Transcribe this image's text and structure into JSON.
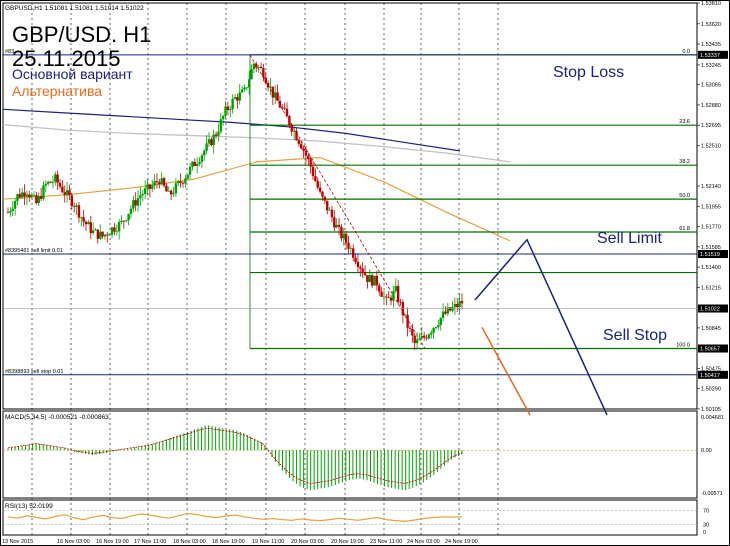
{
  "header": {
    "symbol_line": "GBPUSD,H1  1.51081 1.51081 1.51014 1.51022",
    "title": "GBP/USD. H1",
    "date": "25.11.2015",
    "variant_main": "Основной вариант",
    "variant_alt": "Альтернатива"
  },
  "annotations": {
    "stop_loss": "Stop Loss",
    "sell_limit": "Sell Limit",
    "sell_stop": "Sell Stop",
    "order_1": "#83…",
    "order_2": "#8395461 sell limit 0.01",
    "order_3": "#8398893 sell stop 0.01"
  },
  "colors": {
    "frame": "#000000",
    "fib_line": "#007000",
    "order_line": "#1a237e",
    "ma_dark": "#1a237e",
    "ma_orange": "#e8a040",
    "ma_gray": "#c0c0c0",
    "bull": "#00a000",
    "bear": "#c00000",
    "stoploss_arrow": "#1a237e",
    "alt_arrow": "#e86a1e",
    "macd_hist": "#00a000",
    "macd_signal": "#c00000",
    "rsi_line": "#e8a040",
    "price_box": "#000000"
  },
  "chart_data": [
    {
      "type": "candlestick",
      "title": "GBPUSD,H1",
      "y_axis_ticks": [
        "1.53810",
        "1.53620",
        "1.53435",
        "1.53245",
        "1.53065",
        "1.52880",
        "1.52695",
        "1.52510",
        "1.52140",
        "1.51955",
        "1.51770",
        "1.51585",
        "1.51400",
        "1.51215",
        "1.50845",
        "1.50475",
        "1.50290",
        "1.50105"
      ],
      "price_tags": [
        "1.53337",
        "1.51519",
        "1.51022",
        "1.50657",
        "1.50417"
      ],
      "x_axis_labels": [
        "13 Nov 2015",
        "16 Nov 03:00",
        "16 Nov 19:00",
        "17 Nov 11:00",
        "18 Nov 03:00",
        "18 Nov 19:00",
        "19 Nov 11:00",
        "20 Nov 03:00",
        "20 Nov 19:00",
        "23 Nov 11:00",
        "24 Nov 03:00",
        "24 Nov 19:00"
      ],
      "fibonacci_levels": [
        {
          "label": "0.0",
          "price": 1.53337
        },
        {
          "label": "23.6",
          "price": 1.52695
        },
        {
          "label": "38.2",
          "price": 1.5233
        },
        {
          "label": "50.0",
          "price": 1.5202
        },
        {
          "label": "61.8",
          "price": 1.5172
        },
        {
          "label": "",
          "price": 1.5135
        },
        {
          "label": "100.0",
          "price": 1.50657
        }
      ],
      "orders": [
        {
          "label": "#83…",
          "price": 1.53337
        },
        {
          "label": "#8395461 sell limit 0.01",
          "price": 1.51519
        },
        {
          "label": "#8398893 sell stop 0.01",
          "price": 1.50417
        }
      ],
      "last_price": 1.51022,
      "close_path": [
        1.519,
        1.5205,
        1.521,
        1.5198,
        1.5215,
        1.522,
        1.5208,
        1.5198,
        1.5182,
        1.5172,
        1.5168,
        1.5175,
        1.518,
        1.5194,
        1.5206,
        1.5212,
        1.522,
        1.5205,
        1.5215,
        1.5226,
        1.5238,
        1.5249,
        1.5262,
        1.5282,
        1.5294,
        1.53,
        1.5326,
        1.5318,
        1.5298,
        1.5284,
        1.5268,
        1.5252,
        1.5232,
        1.5206,
        1.519,
        1.5172,
        1.516,
        1.5145,
        1.513,
        1.5126,
        1.5108,
        1.5118,
        1.5092,
        1.507,
        1.5076,
        1.5086,
        1.5096,
        1.5102,
        1.5108
      ],
      "moving_averages": [
        {
          "color": "dark",
          "values": [
            1.5284,
            1.5281,
            1.5278,
            1.5275,
            1.5272,
            1.5268,
            1.5262,
            1.5254,
            1.5246
          ]
        },
        {
          "color": "gray",
          "values": [
            1.527,
            1.5265,
            1.5262,
            1.526,
            1.5258,
            1.5255,
            1.525,
            1.5244,
            1.5236
          ]
        },
        {
          "color": "orange",
          "values": [
            1.5202,
            1.5206,
            1.5212,
            1.522,
            1.5236,
            1.524,
            1.5218,
            1.519,
            1.5164
          ]
        }
      ],
      "forecast_main": [
        1.511,
        1.5165,
        1.5005
      ],
      "forecast_alt": [
        1.5085,
        1.5005
      ]
    },
    {
      "type": "bar",
      "title": "MACD(5,34,5) -0.000521 -0.000863",
      "y_axis_ticks": [
        "0.004681",
        "0.00",
        "-0.00571"
      ],
      "values": [
        0.0002,
        0.0004,
        0.0006,
        0.0008,
        0.0006,
        0.0004,
        0.0002,
        -0.0002,
        -0.0004,
        -0.0006,
        -0.0004,
        -0.0002,
        0.0,
        0.0002,
        0.0004,
        0.0006,
        0.001,
        0.0014,
        0.0018,
        0.0022,
        0.0026,
        0.003,
        0.0028,
        0.0026,
        0.0024,
        0.002,
        0.0014,
        0.0008,
        -0.001,
        -0.0024,
        -0.0036,
        -0.0044,
        -0.0048,
        -0.0046,
        -0.0044,
        -0.004,
        -0.0036,
        -0.0034,
        -0.0036,
        -0.004,
        -0.0044,
        -0.0046,
        -0.0048,
        -0.0044,
        -0.0038,
        -0.003,
        -0.002,
        -0.001,
        -0.0005
      ]
    },
    {
      "type": "line",
      "title": "RSI(13) 52.0199",
      "y_axis_ticks": [
        "70",
        "30",
        "0"
      ],
      "values": [
        52,
        48,
        55,
        50,
        46,
        53,
        58,
        49,
        44,
        51,
        56,
        50,
        47,
        54,
        60,
        57,
        52,
        48,
        55,
        62,
        58,
        53,
        50,
        54,
        57,
        52,
        48,
        45,
        47,
        44,
        42,
        46,
        43,
        41,
        44,
        48,
        45,
        42,
        46,
        50,
        44,
        41,
        39,
        43,
        47,
        50,
        52,
        51,
        52
      ]
    }
  ]
}
